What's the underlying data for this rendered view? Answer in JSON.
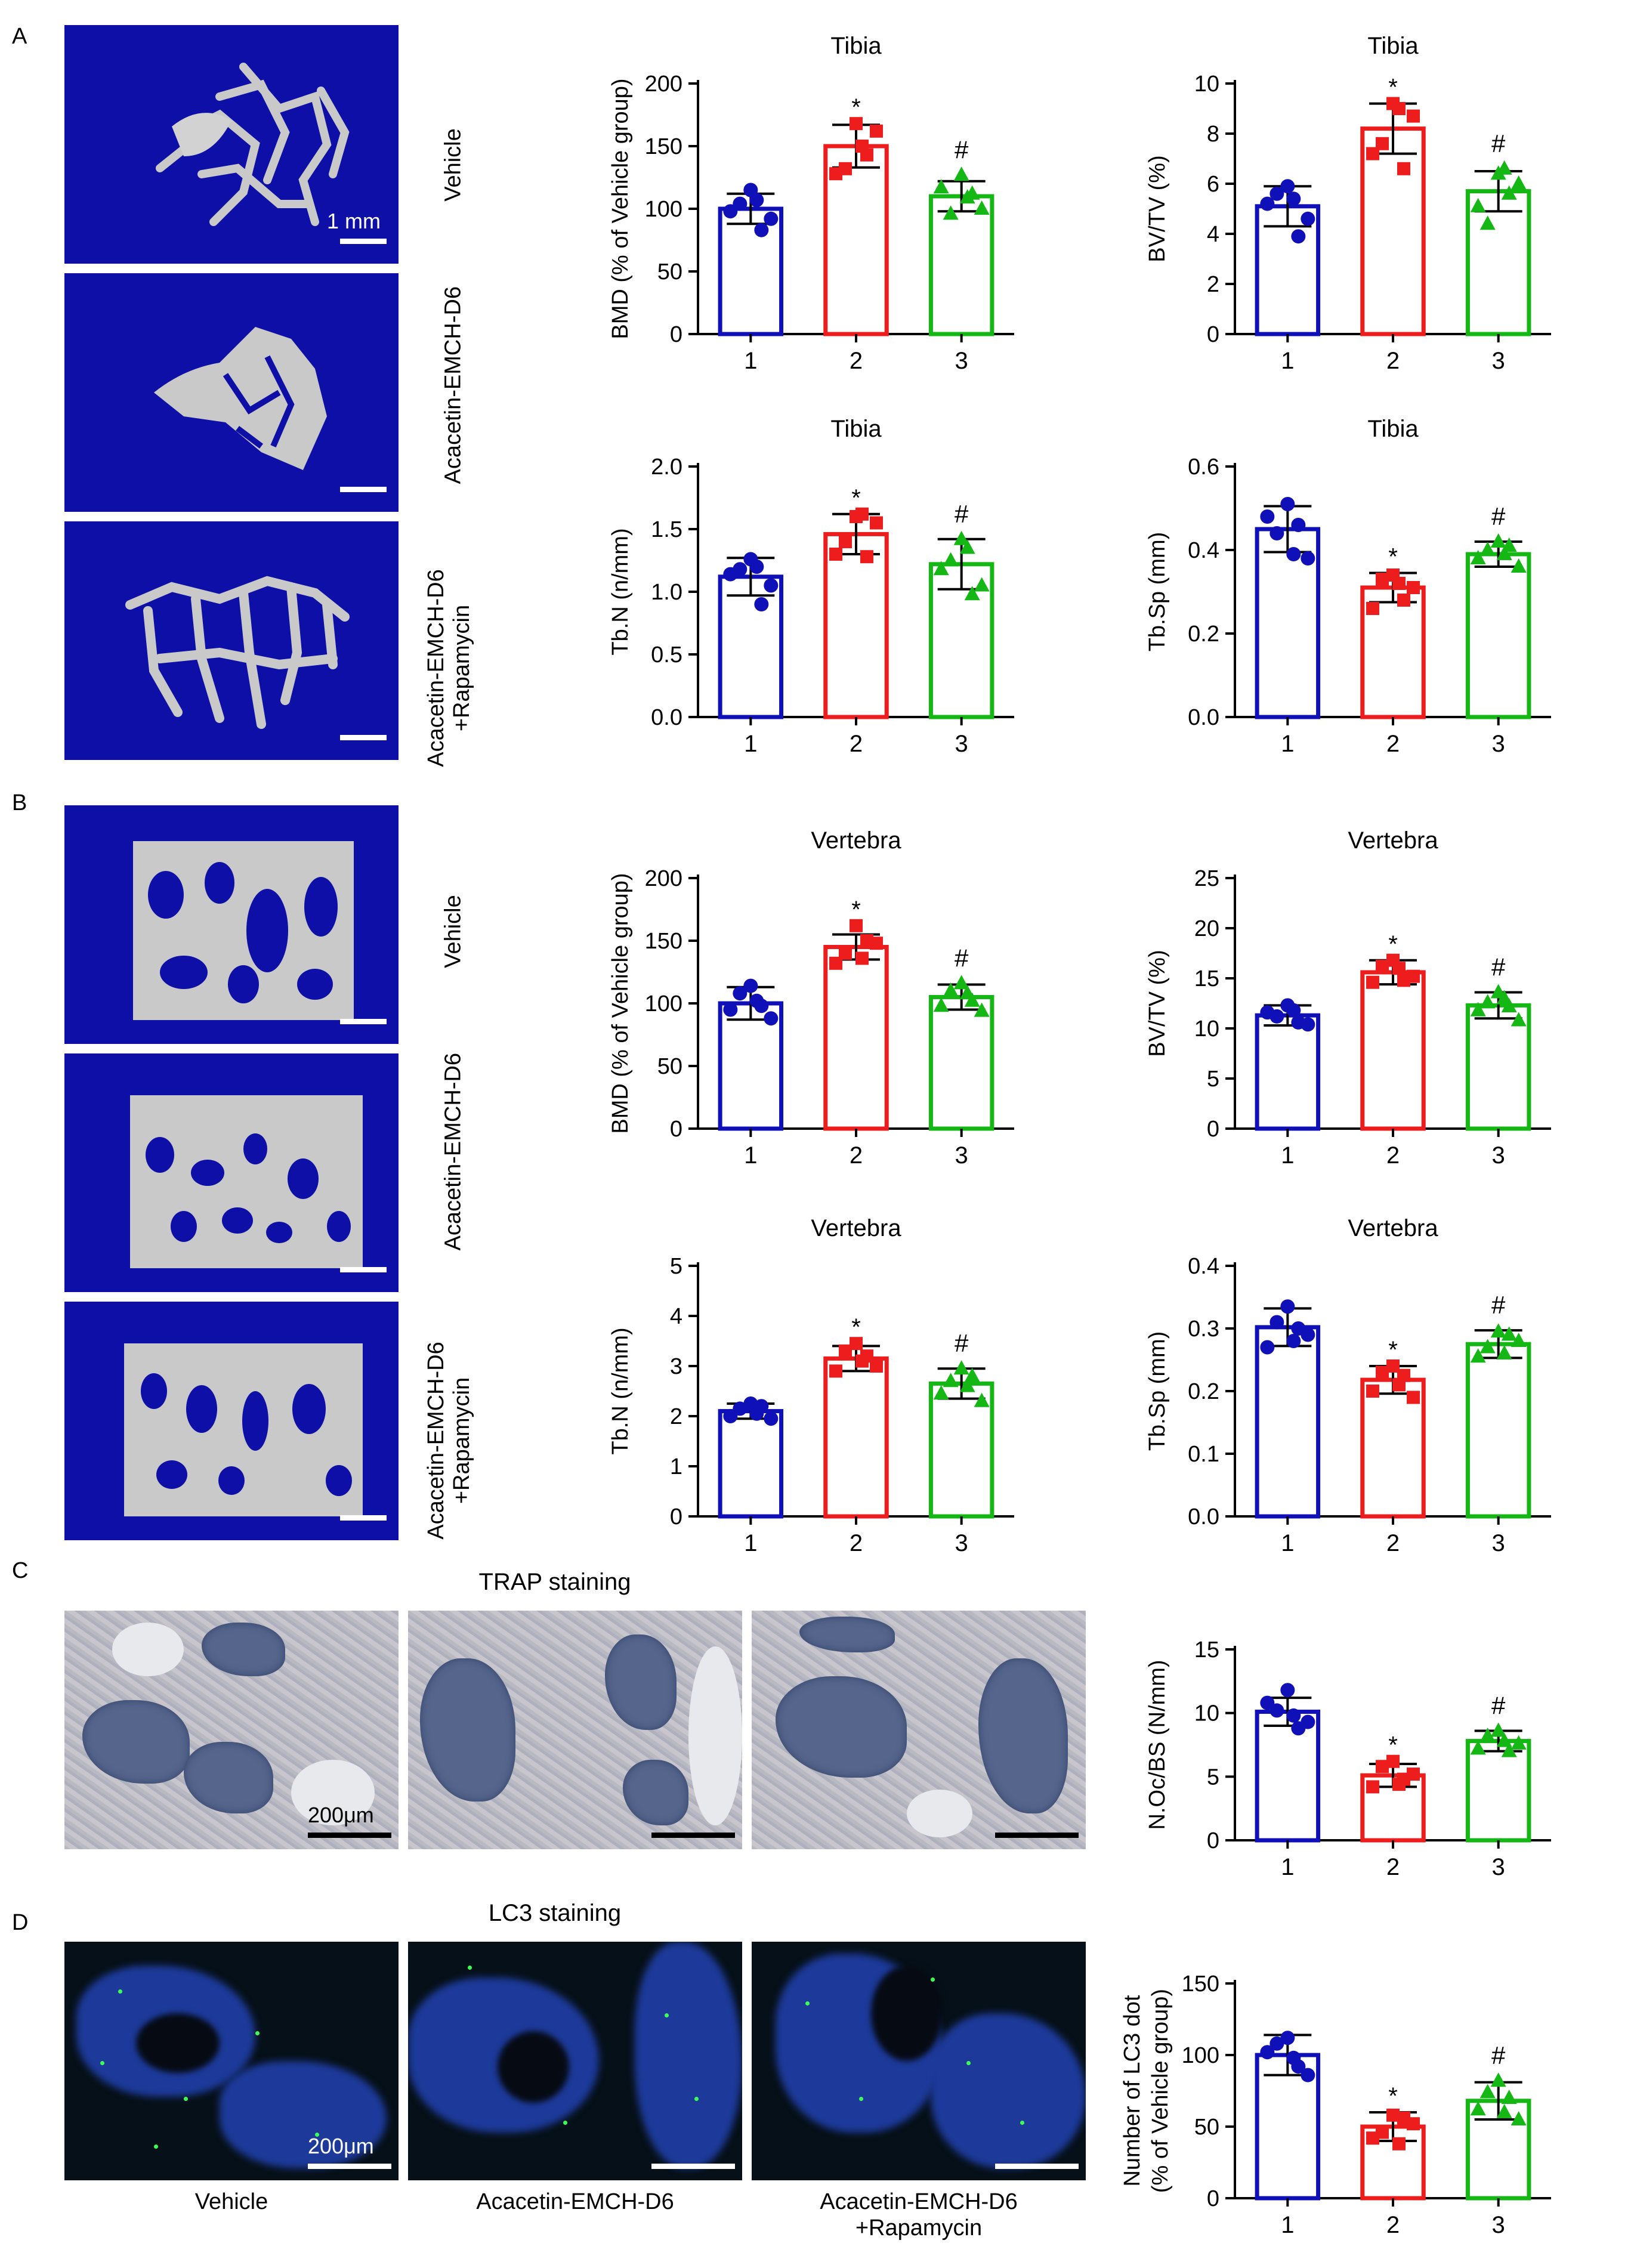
{
  "panels": {
    "A": "A",
    "B": "B",
    "C": "C",
    "D": "D"
  },
  "colors": {
    "group1": "#1010b8",
    "group2": "#ee1d1d",
    "group3": "#14b714",
    "microct_bg": "#0e0fa6"
  },
  "microct_labels": {
    "vehicle": "Vehicle",
    "acacetin": "Acacetin-EMCH-D6",
    "rapa_line1": "Acacetin-EMCH-D6",
    "rapa_line2": "+Rapamycin"
  },
  "scale": {
    "mm": "1 mm",
    "um": "200μm"
  },
  "staining": {
    "trap_title": "TRAP staining",
    "lc3_title": "LC3 staining",
    "cap_vehicle": "Vehicle",
    "cap_acacetin": "Acacetin-EMCH-D6",
    "cap_rapa_line1": "Acacetin-EMCH-D6",
    "cap_rapa_line2": "+Rapamycin"
  },
  "chart_data": [
    {
      "id": "a1",
      "type": "bar",
      "title": "Tibia",
      "ylabel": "BMD (% of Vehicle group)",
      "categories": [
        "1",
        "2",
        "3"
      ],
      "ylim": [
        0,
        200
      ],
      "yticks": [
        0,
        50,
        100,
        150,
        200
      ],
      "values": [
        100,
        150,
        110
      ],
      "sd": [
        12,
        17,
        12
      ],
      "points": [
        [
          115,
          98,
          92,
          104,
          83,
          107
        ],
        [
          168,
          128,
          162,
          132,
          143,
          150
        ],
        [
          127,
          117,
          100,
          96,
          112,
          109
        ]
      ],
      "annotations": [
        "",
        "*",
        "#"
      ]
    },
    {
      "id": "a2",
      "type": "bar",
      "title": "Tibia",
      "ylabel": "BV/TV (%)",
      "categories": [
        "1",
        "2",
        "3"
      ],
      "ylim": [
        0,
        10
      ],
      "yticks": [
        0,
        2,
        4,
        6,
        8,
        10
      ],
      "values": [
        5.1,
        8.2,
        5.7
      ],
      "sd": [
        0.8,
        1.0,
        0.8
      ],
      "points": [
        [
          5.9,
          5.2,
          4.6,
          5.6,
          3.9,
          5.4
        ],
        [
          9.2,
          7.2,
          8.7,
          7.6,
          6.6,
          9.0
        ],
        [
          6.4,
          5.1,
          6.0,
          4.4,
          5.6,
          6.6
        ]
      ],
      "annotations": [
        "",
        "*",
        "#"
      ]
    },
    {
      "id": "a3",
      "type": "bar",
      "title": "Tibia",
      "ylabel": "Tb.N (n/mm)",
      "categories": [
        "1",
        "2",
        "3"
      ],
      "ylim": [
        0,
        2
      ],
      "yticks": [
        0.0,
        0.5,
        1.0,
        1.5,
        2.0
      ],
      "values": [
        1.12,
        1.46,
        1.22
      ],
      "sd": [
        0.15,
        0.16,
        0.2
      ],
      "points": [
        [
          1.26,
          1.14,
          1.05,
          1.18,
          0.9,
          1.2
        ],
        [
          1.6,
          1.3,
          1.55,
          1.4,
          1.28,
          1.62
        ],
        [
          1.42,
          1.18,
          1.05,
          1.25,
          0.98,
          1.35
        ]
      ],
      "annotations": [
        "",
        "*",
        "#"
      ]
    },
    {
      "id": "a4",
      "type": "bar",
      "title": "Tibia",
      "ylabel": "Tb.Sp (mm)",
      "categories": [
        "1",
        "2",
        "3"
      ],
      "ylim": [
        0,
        0.6
      ],
      "yticks": [
        0.0,
        0.2,
        0.4,
        0.6
      ],
      "values": [
        0.45,
        0.31,
        0.39
      ],
      "sd": [
        0.055,
        0.035,
        0.03
      ],
      "points": [
        [
          0.51,
          0.48,
          0.38,
          0.44,
          0.46,
          0.39
        ],
        [
          0.34,
          0.26,
          0.31,
          0.33,
          0.28,
          0.32
        ],
        [
          0.42,
          0.38,
          0.36,
          0.4,
          0.41,
          0.39
        ]
      ],
      "annotations": [
        "",
        "*",
        "#"
      ]
    },
    {
      "id": "b1",
      "type": "bar",
      "title": "Vertebra",
      "ylabel": "BMD (% of Vehicle group)",
      "categories": [
        "1",
        "2",
        "3"
      ],
      "ylim": [
        0,
        200
      ],
      "yticks": [
        0,
        50,
        100,
        150,
        200
      ],
      "values": [
        100,
        145,
        105
      ],
      "sd": [
        13,
        10,
        10
      ],
      "points": [
        [
          114,
          95,
          88,
          108,
          98,
          102
        ],
        [
          162,
          132,
          148,
          140,
          150,
          136
        ],
        [
          116,
          98,
          94,
          110,
          102,
          108
        ]
      ],
      "annotations": [
        "",
        "*",
        "#"
      ]
    },
    {
      "id": "b2",
      "type": "bar",
      "title": "Vertebra",
      "ylabel": "BV/TV (%)",
      "categories": [
        "1",
        "2",
        "3"
      ],
      "ylim": [
        0,
        25
      ],
      "yticks": [
        0,
        5,
        10,
        15,
        20,
        25
      ],
      "values": [
        11.3,
        15.6,
        12.3
      ],
      "sd": [
        1.0,
        1.2,
        1.3
      ],
      "points": [
        [
          12.3,
          11.6,
          10.4,
          11.2,
          10.6,
          11.8
        ],
        [
          16.8,
          14.6,
          15.2,
          16.2,
          14.8,
          16.0
        ],
        [
          13.6,
          11.8,
          10.8,
          12.6,
          12.2,
          13.0
        ]
      ],
      "annotations": [
        "",
        "*",
        "#"
      ]
    },
    {
      "id": "b3",
      "type": "bar",
      "title": "Vertebra",
      "ylabel": "Tb.N (n/mm)",
      "categories": [
        "1",
        "2",
        "3"
      ],
      "ylim": [
        0,
        5
      ],
      "yticks": [
        0,
        1,
        2,
        3,
        4,
        5
      ],
      "values": [
        2.1,
        3.15,
        2.65
      ],
      "sd": [
        0.15,
        0.25,
        0.3
      ],
      "points": [
        [
          2.25,
          2.0,
          1.95,
          2.15,
          2.2,
          2.05
        ],
        [
          3.45,
          2.9,
          3.0,
          3.3,
          3.2,
          3.1
        ],
        [
          2.95,
          2.45,
          2.3,
          2.7,
          2.8,
          2.6
        ]
      ],
      "annotations": [
        "",
        "*",
        "#"
      ]
    },
    {
      "id": "b4",
      "type": "bar",
      "title": "Vertebra",
      "ylabel": "Tb.Sp (mm)",
      "categories": [
        "1",
        "2",
        "3"
      ],
      "ylim": [
        0,
        0.4
      ],
      "yticks": [
        0.0,
        0.1,
        0.2,
        0.3,
        0.4
      ],
      "values": [
        0.302,
        0.218,
        0.275
      ],
      "sd": [
        0.03,
        0.022,
        0.022
      ],
      "points": [
        [
          0.335,
          0.27,
          0.29,
          0.31,
          0.3,
          0.28
        ],
        [
          0.24,
          0.2,
          0.19,
          0.23,
          0.225,
          0.21
        ],
        [
          0.295,
          0.255,
          0.28,
          0.27,
          0.29,
          0.26
        ]
      ],
      "annotations": [
        "",
        "*",
        "#"
      ]
    },
    {
      "id": "c1",
      "type": "bar",
      "title": "",
      "ylabel": "N.Oc/BS (N/mm)",
      "categories": [
        "1",
        "2",
        "3"
      ],
      "ylim": [
        0,
        15
      ],
      "yticks": [
        0,
        5,
        10,
        15
      ],
      "values": [
        10.1,
        5.1,
        7.8
      ],
      "sd": [
        1.1,
        0.9,
        0.8
      ],
      "points": [
        [
          11.8,
          10.8,
          9.3,
          10.2,
          8.8,
          9.8
        ],
        [
          6.2,
          4.2,
          5.2,
          5.8,
          4.8,
          4.4
        ],
        [
          8.6,
          7.2,
          7.6,
          8.2,
          7.0,
          7.8
        ]
      ],
      "annotations": [
        "",
        "*",
        "#"
      ]
    },
    {
      "id": "d1",
      "type": "bar",
      "title": "",
      "ylabel": "Number of LC3 dot (% of Vehicle group)",
      "categories": [
        "1",
        "2",
        "3"
      ],
      "ylim": [
        0,
        150
      ],
      "yticks": [
        0,
        50,
        100,
        150
      ],
      "values": [
        100,
        50,
        68
      ],
      "sd": [
        14,
        10,
        13
      ],
      "points": [
        [
          112,
          102,
          86,
          108,
          92,
          98
        ],
        [
          58,
          42,
          52,
          46,
          56,
          38
        ],
        [
          82,
          62,
          55,
          74,
          70,
          60
        ]
      ],
      "annotations": [
        "",
        "*",
        "#"
      ]
    }
  ]
}
